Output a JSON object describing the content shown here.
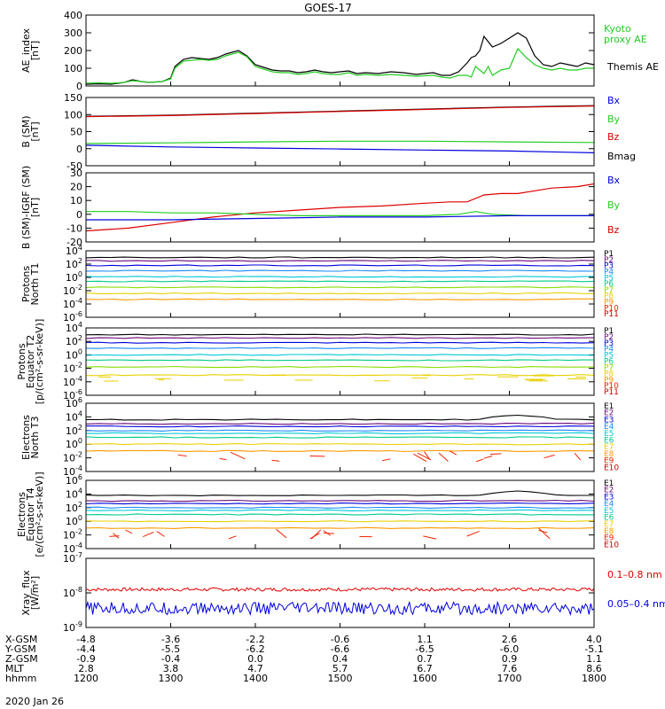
{
  "title": "GOES-17",
  "date_label": "2020 Jan 26",
  "colors": {
    "black": "#000000",
    "red": "#dd0000",
    "green": "#22cc22",
    "blue": "#0000dd",
    "darkred": "#8b0000"
  },
  "chart_data": [
    {
      "id": "ae",
      "type": "line",
      "ylabel": [
        "AE_index",
        "[nT]"
      ],
      "ylim": [
        0,
        400
      ],
      "yticks": [
        "400",
        "300",
        "200",
        "100",
        "0"
      ],
      "xlim": [
        1200,
        1800
      ],
      "legend": [
        {
          "text": "Kyoto",
          "color": "#22cc22"
        },
        {
          "text": "proxy AE",
          "color": "#22cc22"
        },
        {
          "text": "Themis AE",
          "color": "#000000"
        }
      ],
      "series": [
        {
          "name": "Themis AE",
          "color": "#000000",
          "x": [
            1200,
            1215,
            1230,
            1245,
            1255,
            1265,
            1275,
            1290,
            1300,
            1305,
            1315,
            1325,
            1335,
            1345,
            1355,
            1365,
            1380,
            1390,
            1400,
            1410,
            1420,
            1430,
            1440,
            1450,
            1460,
            1470,
            1480,
            1490,
            1500,
            1510,
            1520,
            1530,
            1545,
            1560,
            1575,
            1590,
            1610,
            1620,
            1630,
            1640,
            1650,
            1655,
            1660,
            1665,
            1670,
            1675,
            1680,
            1690,
            1700,
            1710,
            1720,
            1730,
            1740,
            1750,
            1760,
            1770,
            1780,
            1790,
            1800
          ],
          "y": [
            10,
            12,
            10,
            20,
            35,
            25,
            20,
            25,
            45,
            110,
            150,
            160,
            155,
            150,
            160,
            180,
            200,
            170,
            120,
            105,
            90,
            85,
            85,
            75,
            80,
            90,
            80,
            75,
            80,
            85,
            70,
            75,
            70,
            80,
            75,
            65,
            75,
            60,
            60,
            80,
            130,
            160,
            170,
            200,
            280,
            250,
            220,
            240,
            270,
            300,
            270,
            170,
            120,
            110,
            130,
            120,
            110,
            130,
            120
          ]
        },
        {
          "name": "Kyoto proxy AE",
          "color": "#22cc22",
          "x": [
            1200,
            1215,
            1230,
            1245,
            1255,
            1265,
            1275,
            1290,
            1300,
            1305,
            1315,
            1325,
            1335,
            1345,
            1355,
            1365,
            1380,
            1390,
            1400,
            1410,
            1420,
            1430,
            1440,
            1450,
            1460,
            1470,
            1480,
            1490,
            1500,
            1510,
            1520,
            1530,
            1545,
            1560,
            1575,
            1590,
            1610,
            1620,
            1630,
            1640,
            1650,
            1655,
            1660,
            1665,
            1670,
            1675,
            1680,
            1690,
            1700,
            1710,
            1720,
            1730,
            1740,
            1750,
            1760,
            1770,
            1780,
            1790,
            1800
          ],
          "y": [
            15,
            18,
            15,
            20,
            30,
            25,
            20,
            25,
            40,
            100,
            140,
            145,
            150,
            145,
            150,
            170,
            190,
            165,
            110,
            95,
            80,
            75,
            75,
            65,
            70,
            80,
            70,
            65,
            65,
            75,
            60,
            65,
            60,
            65,
            60,
            55,
            60,
            50,
            45,
            60,
            60,
            50,
            110,
            90,
            70,
            110,
            60,
            90,
            100,
            210,
            160,
            120,
            100,
            90,
            100,
            90,
            90,
            100,
            100
          ]
        }
      ]
    },
    {
      "id": "bsm",
      "type": "line",
      "ylabel": [
        "B (SM)",
        "[nT]"
      ],
      "ylim": [
        -50,
        150
      ],
      "yticks": [
        "150",
        "100",
        "50",
        "0",
        "-50"
      ],
      "xlim": [
        1200,
        1800
      ],
      "legend": [
        {
          "text": "Bx",
          "color": "#0000dd"
        },
        {
          "text": "By",
          "color": "#22cc22"
        },
        {
          "text": "Bz",
          "color": "#dd0000"
        },
        {
          "text": "Bmag",
          "color": "#000000"
        }
      ],
      "series": [
        {
          "name": "Bmag",
          "color": "#000000",
          "x": [
            1200,
            1300,
            1400,
            1500,
            1600,
            1700,
            1800
          ],
          "y": [
            95,
            98,
            104,
            110,
            116,
            122,
            126
          ]
        },
        {
          "name": "Bz",
          "color": "#dd0000",
          "x": [
            1200,
            1300,
            1400,
            1500,
            1600,
            1700,
            1800
          ],
          "y": [
            94,
            97,
            103,
            109,
            115,
            121,
            125
          ]
        },
        {
          "name": "By",
          "color": "#22cc22",
          "x": [
            1200,
            1300,
            1400,
            1500,
            1600,
            1700,
            1800
          ],
          "y": [
            15,
            17,
            20,
            22,
            22,
            20,
            18
          ]
        },
        {
          "name": "Bx",
          "color": "#0000dd",
          "x": [
            1200,
            1300,
            1400,
            1500,
            1600,
            1700,
            1800
          ],
          "y": [
            10,
            5,
            2,
            -1,
            -4,
            -7,
            -12
          ]
        }
      ]
    },
    {
      "id": "bigrf",
      "type": "line",
      "ylabel": [
        "B (SM)-IGRF (SM)",
        "[nT]"
      ],
      "ylim": [
        -20,
        30
      ],
      "yticks": [
        "30",
        "20",
        "10",
        "0",
        "-10",
        "-20"
      ],
      "xlim": [
        1200,
        1800
      ],
      "legend": [
        {
          "text": "Bx",
          "color": "#0000dd"
        },
        {
          "text": "By",
          "color": "#22cc22"
        },
        {
          "text": "Bz",
          "color": "#dd0000"
        }
      ],
      "series": [
        {
          "name": "Bz",
          "color": "#dd0000",
          "x": [
            1200,
            1250,
            1300,
            1350,
            1400,
            1450,
            1500,
            1550,
            1600,
            1630,
            1650,
            1670,
            1690,
            1710,
            1730,
            1750,
            1780,
            1800
          ],
          "y": [
            -12,
            -10,
            -6,
            -2,
            1,
            3,
            5,
            6,
            8,
            9,
            9,
            14,
            15,
            15,
            17,
            19,
            20,
            22
          ]
        },
        {
          "name": "By",
          "color": "#22cc22",
          "x": [
            1200,
            1250,
            1300,
            1350,
            1400,
            1450,
            1500,
            1550,
            1600,
            1640,
            1660,
            1680,
            1720,
            1760,
            1800
          ],
          "y": [
            2,
            2,
            1,
            1,
            0,
            -1,
            -1,
            -1,
            -1,
            0,
            2,
            0,
            -1,
            -1,
            -1
          ]
        },
        {
          "name": "Bx",
          "color": "#0000dd",
          "x": [
            1200,
            1300,
            1400,
            1500,
            1600,
            1700,
            1800
          ],
          "y": [
            -4,
            -4,
            -3,
            -2,
            -2,
            -1,
            -1
          ]
        }
      ]
    },
    {
      "id": "p_t1",
      "type": "line",
      "log": true,
      "ylabel": [
        "Protons",
        "North T1"
      ],
      "ylim_exp": [
        -6,
        4
      ],
      "ytick_exps": [
        4,
        2,
        0,
        -2,
        -4,
        -6
      ],
      "xlim": [
        1200,
        1800
      ],
      "channels": [
        {
          "text": "P1",
          "color": "#000000",
          "level": 3.0
        },
        {
          "text": "P2",
          "color": "#6a0a7a",
          "level": 2.5
        },
        {
          "text": "P3",
          "color": "#0000dd",
          "level": 1.8
        },
        {
          "text": "P4",
          "color": "#1a8aff",
          "level": 1.0
        },
        {
          "text": "P5",
          "color": "#00c8d8",
          "level": 0.1
        },
        {
          "text": "P6",
          "color": "#00cc88",
          "level": -0.6
        },
        {
          "text": "P7",
          "color": "#88dd00",
          "level": -1.5
        },
        {
          "text": "P8",
          "color": "#e8d000",
          "level": -2.4
        },
        {
          "text": "P9",
          "color": "#ff9900",
          "level": -3.3
        },
        {
          "text": "P10",
          "color": "#ee2200",
          "level": null
        },
        {
          "text": "P11",
          "color": "#cc0000",
          "level": null
        }
      ]
    },
    {
      "id": "p_t2",
      "type": "line",
      "log": true,
      "ylabel": [
        "Protons",
        "Equator T2",
        "[p/(cm²-s-sr-keV)]"
      ],
      "ylim_exp": [
        -6,
        4
      ],
      "ytick_exps": [
        4,
        2,
        0,
        -2,
        -4,
        -6
      ],
      "xlim": [
        1200,
        1800
      ],
      "channels": [
        {
          "text": "P1",
          "color": "#000000",
          "level": 3.0
        },
        {
          "text": "P2",
          "color": "#6a0a7a",
          "level": 2.5
        },
        {
          "text": "P3",
          "color": "#0000dd",
          "level": 1.8
        },
        {
          "text": "P4",
          "color": "#1a8aff",
          "level": 1.0
        },
        {
          "text": "P5",
          "color": "#00c8d8",
          "level": 0.0
        },
        {
          "text": "P6",
          "color": "#00cc88",
          "level": -0.8
        },
        {
          "text": "P7",
          "color": "#88dd00",
          "level": -1.8
        },
        {
          "text": "P8",
          "color": "#e8d000",
          "level": -3.0
        },
        {
          "text": "P9",
          "color": "#ff9900",
          "level": null
        },
        {
          "text": "P10",
          "color": "#ee2200",
          "level": null
        },
        {
          "text": "P11",
          "color": "#cc0000",
          "level": null
        }
      ]
    },
    {
      "id": "e_t3",
      "type": "line",
      "log": true,
      "ylabel": [
        "Electrons",
        "North T3"
      ],
      "ylim_exp": [
        -4,
        6
      ],
      "ytick_exps": [
        6,
        4,
        2,
        0,
        -2,
        -4
      ],
      "xlim": [
        1200,
        1800
      ],
      "channels": [
        {
          "text": "E1",
          "color": "#000000",
          "level": 3.6
        },
        {
          "text": "E2",
          "color": "#6a0a7a",
          "level": 3.0
        },
        {
          "text": "E3",
          "color": "#0000dd",
          "level": 2.6
        },
        {
          "text": "E4",
          "color": "#1a8aff",
          "level": 2.0
        },
        {
          "text": "E5",
          "color": "#00c8d8",
          "level": 1.6
        },
        {
          "text": "E6",
          "color": "#00cc88",
          "level": 1.0
        },
        {
          "text": "E7",
          "color": "#e8d000",
          "level": 0.0
        },
        {
          "text": "E8",
          "color": "#ff9900",
          "level": -1.0
        },
        {
          "text": "E9",
          "color": "#ee2200",
          "level": null
        },
        {
          "text": "E10",
          "color": "#cc0000",
          "level": null
        }
      ]
    },
    {
      "id": "e_t4",
      "type": "line",
      "log": true,
      "ylabel": [
        "Electrons",
        "Equator T4",
        "[e/(cm²-s-sr-keV)]"
      ],
      "ylim_exp": [
        -4,
        6
      ],
      "ytick_exps": [
        6,
        4,
        2,
        0,
        -2,
        -4
      ],
      "xlim": [
        1200,
        1800
      ],
      "channels": [
        {
          "text": "E1",
          "color": "#000000",
          "level": 3.8
        },
        {
          "text": "E2",
          "color": "#6a0a7a",
          "level": 3.0
        },
        {
          "text": "E3",
          "color": "#0000dd",
          "level": 2.6
        },
        {
          "text": "E4",
          "color": "#1a8aff",
          "level": 2.0
        },
        {
          "text": "E5",
          "color": "#00c8d8",
          "level": 1.6
        },
        {
          "text": "E6",
          "color": "#00cc88",
          "level": 1.0
        },
        {
          "text": "E7",
          "color": "#e8d000",
          "level": 0.0
        },
        {
          "text": "E8",
          "color": "#ff9900",
          "level": -1.0
        },
        {
          "text": "E9",
          "color": "#ee2200",
          "level": null
        },
        {
          "text": "E10",
          "color": "#cc0000",
          "level": null
        }
      ]
    },
    {
      "id": "xray",
      "type": "line",
      "log": true,
      "ylabel": [
        "Xray_flux",
        "[W/m²]"
      ],
      "ylim_exp": [
        -9,
        -7
      ],
      "ytick_exps": [
        -7,
        -8,
        -9
      ],
      "xlim": [
        1200,
        1800
      ],
      "legend": [
        {
          "text": "0.1–0.8 nm",
          "color": "#dd0000"
        },
        {
          "text": "0.05–0.4 nm",
          "color": "#0000dd"
        }
      ],
      "series": [
        {
          "name": "0.1–0.8 nm",
          "color": "#dd0000",
          "center_exp": -7.9
        },
        {
          "name": "0.05–0.4 nm",
          "color": "#0000dd",
          "center_exp": -8.45
        }
      ]
    }
  ],
  "x_axis": {
    "row_labels": [
      "X-GSM",
      "Y-GSM",
      "Z-GSM",
      "MLT",
      "hhmm"
    ],
    "columns": [
      [
        "-4.8",
        "-4.4",
        "-0.9",
        "2.8",
        "1200"
      ],
      [
        "-3.6",
        "-5.5",
        "-0.4",
        "3.8",
        "1300"
      ],
      [
        "-2.2",
        "-6.2",
        "0.0",
        "4.7",
        "1400"
      ],
      [
        "-0.6",
        "-6.6",
        "0.4",
        "5.7",
        "1500"
      ],
      [
        "1.1",
        "-6.5",
        "0.7",
        "6.7",
        "1600"
      ],
      [
        "2.6",
        "-6.0",
        "0.9",
        "7.6",
        "1700"
      ],
      [
        "4.0",
        "-5.1",
        "1.1",
        "8.6",
        "1800"
      ]
    ]
  }
}
